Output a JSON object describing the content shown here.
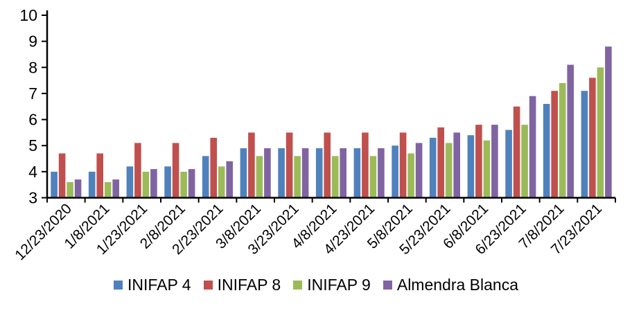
{
  "chart_data": {
    "type": "bar",
    "title": "",
    "xlabel": "",
    "ylabel": "",
    "categories": [
      "12/23/2020",
      "1/8/2021",
      "1/23/2021",
      "2/8/2021",
      "2/23/2021",
      "3/8/2021",
      "3/23/2021",
      "4/8/2021",
      "4/23/2021",
      "5/8/2021",
      "5/23/2021",
      "6/8/2021",
      "6/23/2021",
      "7/8/2021",
      "7/23/2021"
    ],
    "series": [
      {
        "name": "INIFAP 4",
        "color": "#4F81BD",
        "values": [
          4.0,
          4.0,
          4.2,
          4.2,
          4.6,
          4.9,
          4.9,
          4.9,
          4.9,
          5.0,
          5.3,
          5.4,
          5.6,
          6.6,
          7.1
        ]
      },
      {
        "name": "INIFAP 8",
        "color": "#C0504D",
        "values": [
          4.7,
          4.7,
          5.1,
          5.1,
          5.3,
          5.5,
          5.5,
          5.5,
          5.5,
          5.5,
          5.7,
          5.8,
          6.5,
          7.1,
          7.6
        ]
      },
      {
        "name": "INIFAP 9",
        "color": "#9BBB59",
        "values": [
          3.6,
          3.6,
          4.0,
          4.0,
          4.2,
          4.6,
          4.6,
          4.6,
          4.6,
          4.7,
          5.1,
          5.2,
          5.8,
          7.4,
          8.0
        ]
      },
      {
        "name": "Almendra Blanca",
        "color": "#8064A2",
        "values": [
          3.7,
          3.7,
          4.1,
          4.1,
          4.4,
          4.9,
          4.9,
          4.9,
          4.9,
          5.1,
          5.5,
          5.8,
          6.9,
          8.1,
          8.8
        ]
      }
    ],
    "ylim": [
      3,
      10
    ],
    "yticks": [
      3,
      4,
      5,
      6,
      7,
      8,
      9,
      10
    ],
    "grid": false,
    "legend_position": "bottom",
    "axis_color": "#000000",
    "background": "#FFFFFF"
  }
}
